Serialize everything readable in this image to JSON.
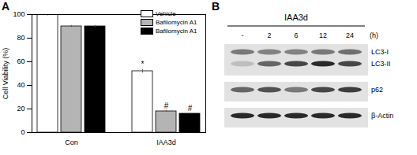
{
  "panel_labels": [
    "A",
    "B"
  ],
  "chart_data": {
    "type": "bar",
    "y_label": "Cell Viability (%)",
    "categories": [
      "Con",
      "IAA3d"
    ],
    "series": [
      {
        "name": "Vehicle",
        "color": "#ffffff",
        "values": [
          100,
          52
        ],
        "errors": [
          1,
          1.5
        ],
        "annotations": [
          null,
          "*"
        ]
      },
      {
        "name": "Bafilomycin A1",
        "color": "#b4b4b4",
        "values": [
          90,
          18
        ],
        "errors": [
          0.8,
          0.8
        ],
        "annotations": [
          null,
          "#"
        ]
      },
      {
        "name": "Bafilomycin A1",
        "color": "#000000",
        "values": [
          90,
          16
        ],
        "errors": [
          0.8,
          0.5
        ],
        "annotations": [
          null,
          "#"
        ]
      }
    ],
    "ylim": [
      0,
      100
    ],
    "yticks": [
      0,
      20,
      40,
      60,
      80,
      100
    ],
    "legend": "top-right"
  },
  "blot": {
    "treatment": "IAA3d",
    "lanes": [
      "-",
      "2",
      "6",
      "12",
      "24"
    ],
    "unit": "(h)",
    "strips": [
      {
        "bands": [
          {
            "name": "LC3-I",
            "intensities": [
              0.5,
              0.45,
              0.45,
              0.5,
              0.55
            ]
          },
          {
            "name": "LC3-II",
            "intensities": [
              0.15,
              0.6,
              0.75,
              0.9,
              0.75
            ]
          }
        ]
      },
      {
        "bands": [
          {
            "name": "p62",
            "intensities": [
              0.6,
              0.7,
              0.5,
              0.75,
              0.8
            ]
          }
        ]
      },
      {
        "bands": [
          {
            "name": "β-Actin",
            "intensities": [
              0.9,
              0.9,
              0.9,
              0.9,
              0.9
            ]
          }
        ]
      }
    ]
  }
}
